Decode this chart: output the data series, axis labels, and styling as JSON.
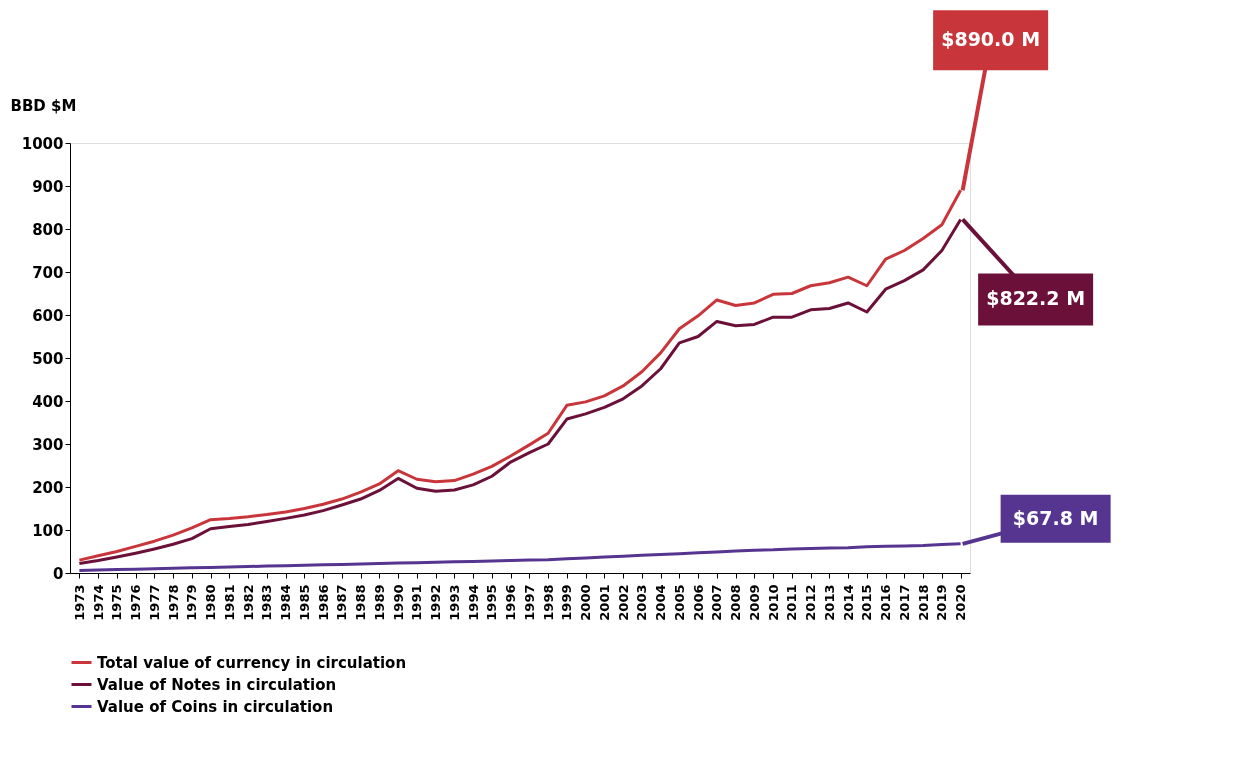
{
  "chart_data": {
    "type": "line",
    "ylabel": "BBD $M",
    "categories": [
      "1973",
      "1974",
      "1975",
      "1976",
      "1977",
      "1978",
      "1979",
      "1980",
      "1981",
      "1982",
      "1983",
      "1984",
      "1985",
      "1986",
      "1987",
      "1988",
      "1989",
      "1990",
      "1991",
      "1992",
      "1993",
      "1994",
      "1995",
      "1996",
      "1997",
      "1998",
      "1999",
      "2000",
      "2001",
      "2002",
      "2003",
      "2004",
      "2005",
      "2006",
      "2007",
      "2008",
      "2009",
      "2010",
      "2011",
      "2012",
      "2013",
      "2014",
      "2015",
      "2016",
      "2017",
      "2018",
      "2019",
      "2020"
    ],
    "series": [
      {
        "name": "Total value of currency in circulation",
        "color": "#c8363b",
        "values": [
          30,
          40,
          50,
          62,
          74,
          88,
          105,
          124,
          127,
          131,
          136,
          142,
          150,
          160,
          172,
          188,
          207,
          238,
          218,
          212,
          215,
          230,
          248,
          272,
          298,
          325,
          390,
          398,
          412,
          435,
          468,
          512,
          568,
          598,
          635,
          622,
          628,
          648,
          650,
          668,
          675,
          688,
          668,
          730,
          750,
          778,
          810,
          890
        ]
      },
      {
        "name": "Value of Notes in circulation",
        "color": "#6b1038",
        "values": [
          22,
          29,
          37,
          46,
          56,
          67,
          80,
          103,
          108,
          113,
          120,
          127,
          135,
          145,
          158,
          172,
          192,
          220,
          197,
          190,
          193,
          205,
          225,
          258,
          280,
          300,
          358,
          370,
          385,
          405,
          435,
          475,
          535,
          550,
          585,
          575,
          578,
          595,
          595,
          612,
          615,
          628,
          607,
          660,
          680,
          705,
          750,
          822.2
        ]
      },
      {
        "name": "Value of Coins in circulation",
        "color": "#55358f",
        "values": [
          6,
          7,
          8,
          9,
          10,
          11,
          12,
          13,
          14,
          15,
          16,
          17,
          18,
          19,
          20,
          21,
          22,
          23,
          24,
          25,
          26,
          27,
          28,
          29,
          30,
          31,
          33,
          35,
          37,
          39,
          41,
          43,
          45,
          47,
          49,
          51,
          53,
          54,
          56,
          57,
          58,
          59,
          61,
          62,
          63,
          64,
          66,
          67.8
        ]
      }
    ],
    "ylim": [
      0,
      1000
    ],
    "yticks": [
      0,
      100,
      200,
      300,
      400,
      500,
      600,
      700,
      800,
      900,
      1000
    ],
    "grid": false,
    "legend": "bottom",
    "marker": "none",
    "line_style": "solid",
    "annotations": [
      {
        "text": "$890.0 M",
        "x": "2020",
        "y": 890
      },
      {
        "text": "$822.2 M",
        "x": "2020",
        "y": 822.2
      },
      {
        "text": "$67.8 M",
        "x": "2020",
        "y": 67.8
      }
    ]
  }
}
